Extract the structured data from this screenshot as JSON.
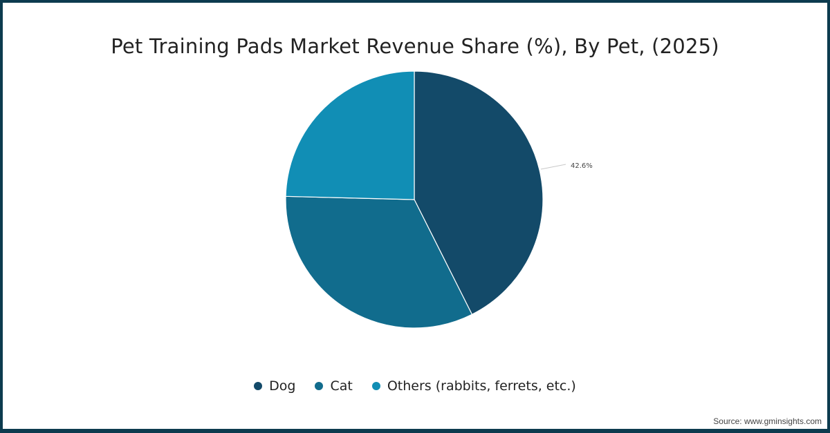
{
  "title": "Pet Training Pads Market Revenue Share (%), By Pet, (2025)",
  "source": "Source: www.gminsights.com",
  "colors": {
    "Dog": "#134a69",
    "Cat": "#116c8d",
    "Others (rabbits, ferrets, etc.)": "#118eb5",
    "frame": "#0d3b4f"
  },
  "legend": [
    {
      "label": "Dog",
      "color": "#134a69"
    },
    {
      "label": "Cat",
      "color": "#116c8d"
    },
    {
      "label": "Others (rabbits, ferrets, etc.)",
      "color": "#118eb5"
    }
  ],
  "labels": {
    "dog_value": "42.6%"
  },
  "chart_data": {
    "type": "pie",
    "title": "Pet Training Pads Market Revenue Share (%), By Pet, (2025)",
    "categories": [
      "Dog",
      "Cat",
      "Others (rabbits, ferrets, etc.)"
    ],
    "values": [
      42.6,
      32.8,
      24.6
    ],
    "labeled_values": {
      "Dog": "42.6%"
    },
    "start_angle_deg": 0,
    "direction": "clockwise",
    "legend_position": "bottom",
    "source": "Source: www.gminsights.com"
  }
}
